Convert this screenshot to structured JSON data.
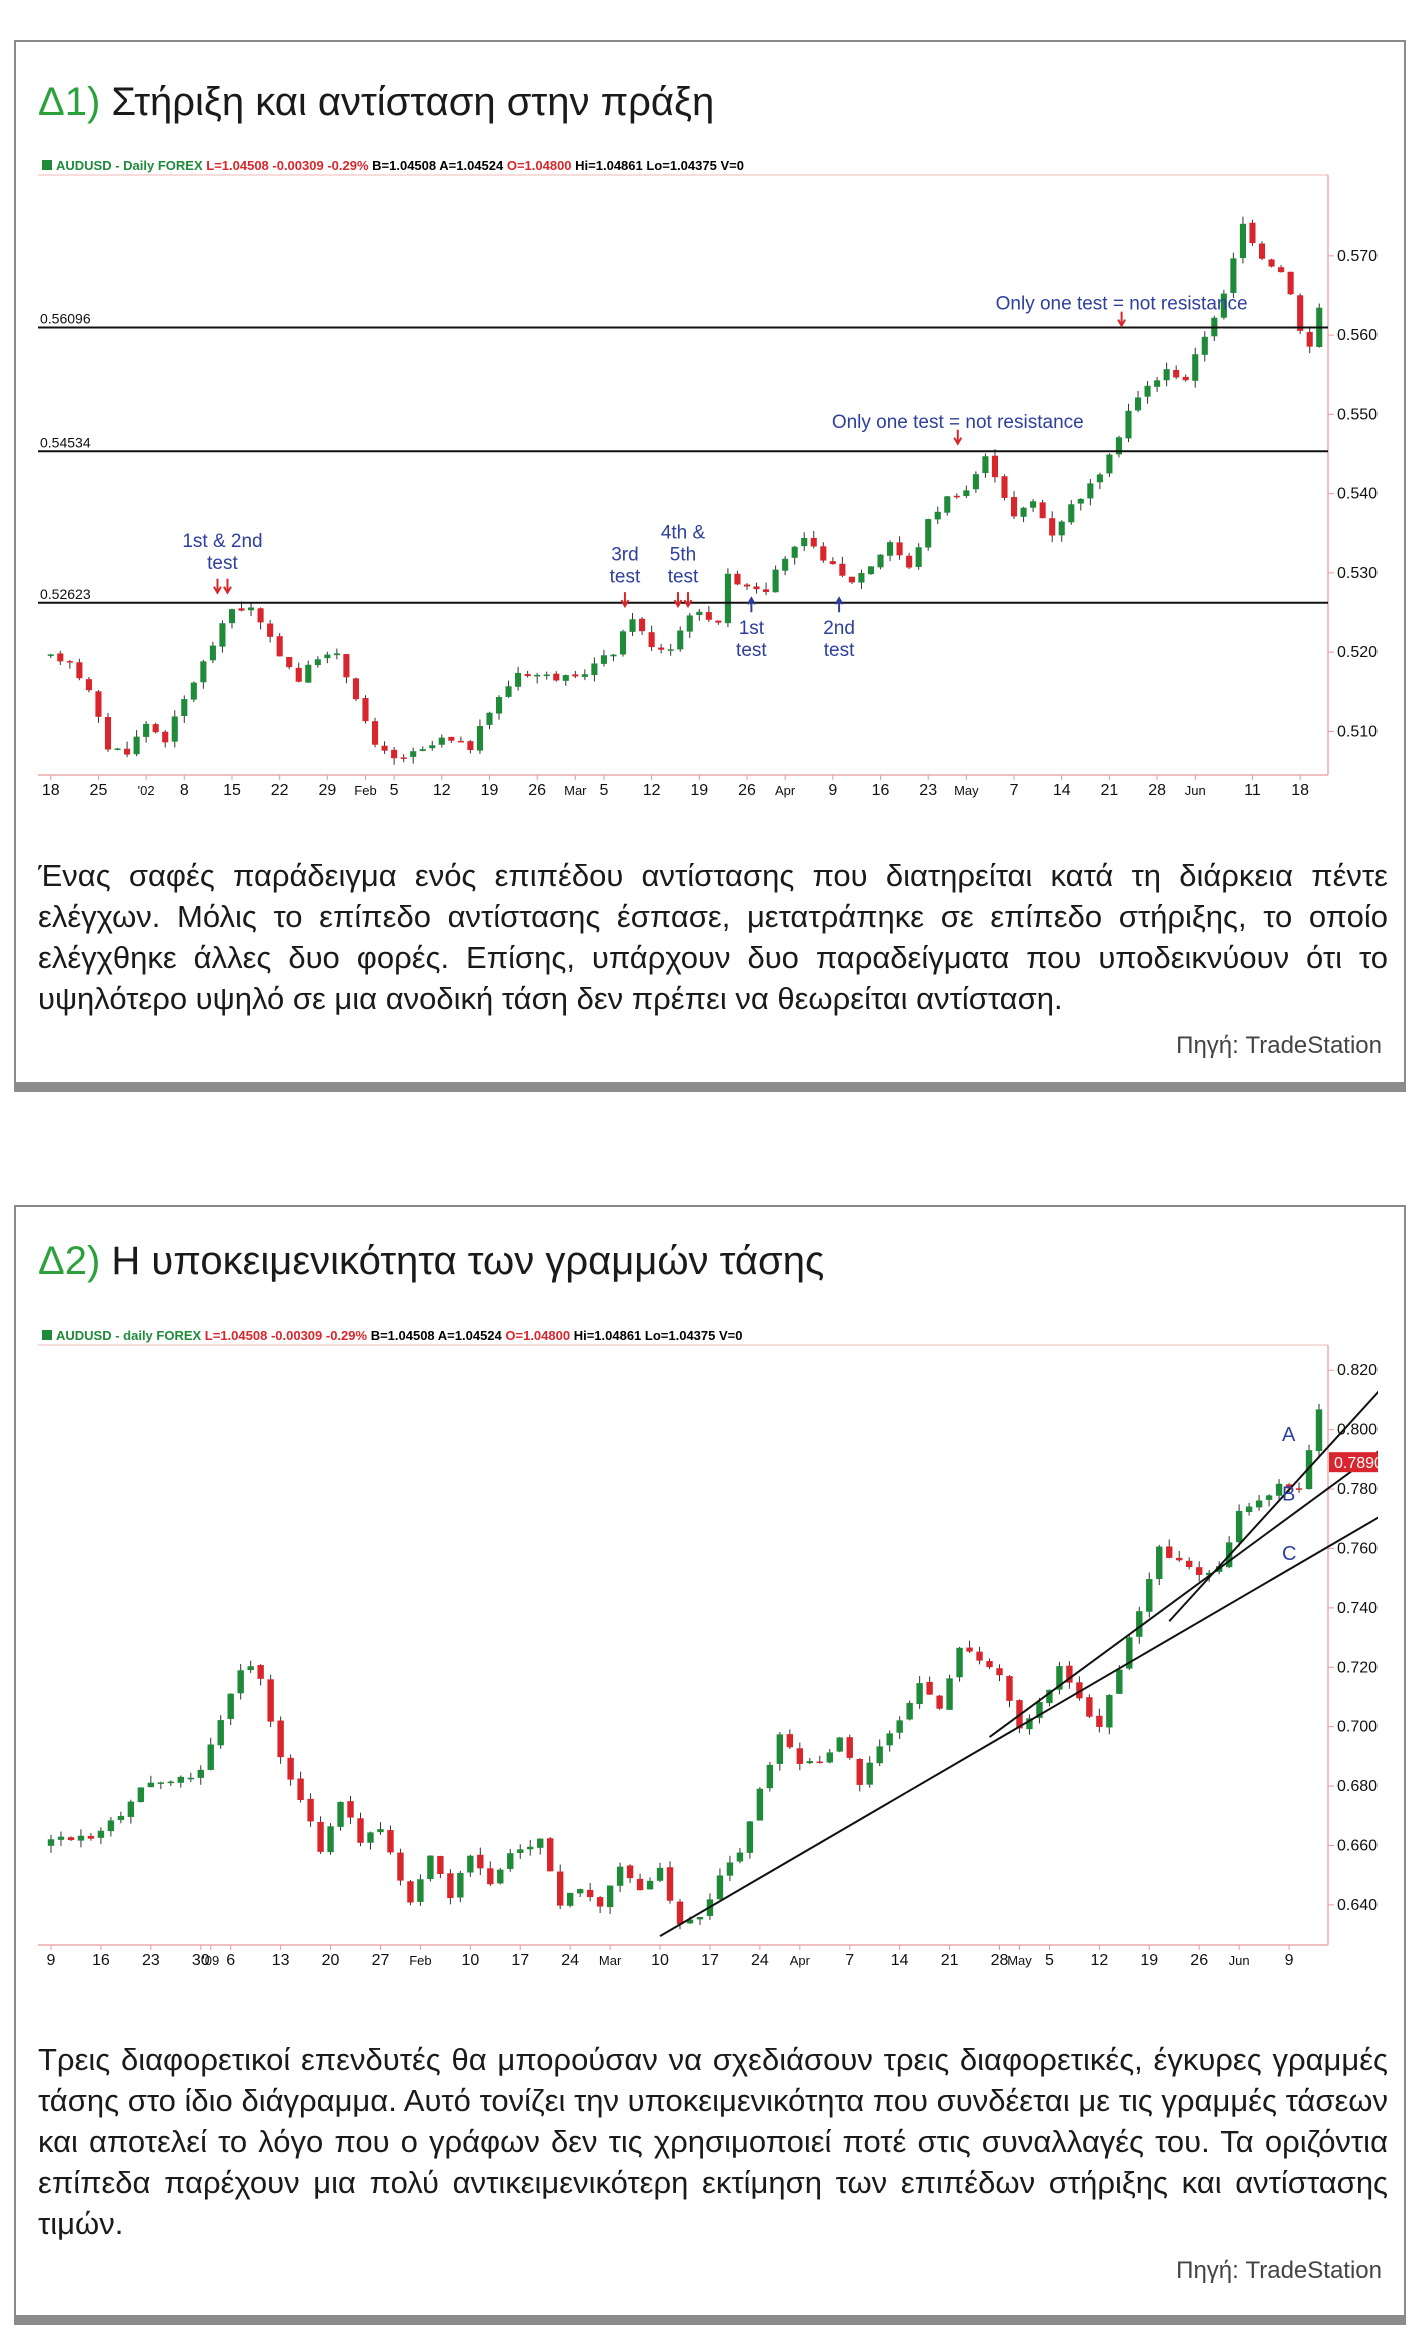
{
  "panel1": {
    "title_num": "Δ1)",
    "title_text": "Στήριξη και αντίσταση στην πράξη",
    "caption": "Ένας σαφές παράδειγμα ενός επιπέδου αντίστασης που διατηρείται κατά τη διάρκεια πέντε ελέγχων. Μόλις το επίπεδο αντίστασης έσπασε, μετατράπηκε σε επίπεδο στήριξης, το οποίο ελέγχθηκε άλλες δυο φορές. Επίσης, υπάρχουν δυο παραδείγματα που υποδεικνύουν ότι το υψηλότερο υψηλό σε μια ανοδική τάση δεν πρέπει να θεωρείται αντίσταση.",
    "source": "Πηγή: TradeStation"
  },
  "panel2": {
    "title_num": "Δ2)",
    "title_text": "Η υποκειμενικότητα των γραμμών τάσης",
    "caption": "Τρεις διαφορετικοί επενδυτές θα μπορούσαν να σχεδιάσουν τρεις διαφορετικές, έγκυρες γραμμές τάσης στο ίδιο διάγραμμα. Αυτό τονίζει την υποκειμενικότητα που συνδέεται με τις γραμμές τάσεων και αποτελεί  το λόγο που ο γράφων δεν τις χρησιμοποιεί ποτέ στις συναλλαγές του. Τα οριζόντια επίπεδα παρέχουν μια πολύ αντικειμενικότερη εκτίμηση των επιπέδων στήριξης και αντίστασης τιμών.",
    "source": "Πηγή: TradeStation"
  },
  "colors": {
    "up": "#1f8a3a",
    "down": "#d8262c",
    "annot": "#2e3f9e",
    "arrow_red": "#d8262c",
    "title_num": "#2aa13a"
  },
  "chart_data": [
    {
      "type": "candlestick",
      "header": [
        {
          "t": "AUDUSD - Daily FOREX ",
          "c": "#1f8a3a"
        },
        {
          "t": "L=1.04508 ",
          "c": "#d8262c"
        },
        {
          "t": "-0.00309 ",
          "c": "#d8262c"
        },
        {
          "t": "-0.29% ",
          "c": "#d8262c"
        },
        {
          "t": "B=1.04508 ",
          "c": "#000000"
        },
        {
          "t": "A=1.04524 ",
          "c": "#000000"
        },
        {
          "t": "O=1.04800 ",
          "c": "#d8262c"
        },
        {
          "t": "Hi=1.04861 ",
          "c": "#000000"
        },
        {
          "t": "Lo=1.04375 ",
          "c": "#000000"
        },
        {
          "t": "V=0",
          "c": "#000000"
        }
      ],
      "ylim": [
        0.5045,
        0.5802
      ],
      "yticks": [
        "0.51000",
        "0.52000",
        "0.53000",
        "0.54000",
        "0.55000",
        "0.56000",
        "0.57000"
      ],
      "ytick_values": [
        0.51,
        0.52,
        0.53,
        0.54,
        0.55,
        0.56,
        0.57
      ],
      "xticks": [
        "18",
        "25",
        "'02",
        "8",
        "15",
        "22",
        "29",
        "Feb",
        "5",
        "12",
        "19",
        "26",
        "Mar",
        "5",
        "12",
        "19",
        "26",
        "Apr",
        "9",
        "16",
        "23",
        "May",
        "7",
        "14",
        "21",
        "28",
        "Jun",
        "11",
        "18"
      ],
      "xtick_index": [
        0,
        5,
        10,
        14,
        19,
        24,
        29,
        33,
        36,
        41,
        46,
        51,
        55,
        58,
        63,
        68,
        73,
        77,
        82,
        87,
        92,
        96,
        101,
        106,
        111,
        116,
        120,
        126,
        131
      ],
      "n_bars": 134,
      "hlines": [
        {
          "value": 0.56096,
          "label": "0.56096"
        },
        {
          "value": 0.54534,
          "label": "0.54534"
        },
        {
          "value": 0.52623,
          "label": "0.52623"
        }
      ],
      "anchors": [
        {
          "i": 0,
          "v": 0.5195
        },
        {
          "i": 3,
          "v": 0.519
        },
        {
          "i": 5,
          "v": 0.515
        },
        {
          "i": 7,
          "v": 0.508
        },
        {
          "i": 9,
          "v": 0.5075
        },
        {
          "i": 11,
          "v": 0.511
        },
        {
          "i": 13,
          "v": 0.509
        },
        {
          "i": 15,
          "v": 0.514
        },
        {
          "i": 18,
          "v": 0.521
        },
        {
          "i": 20,
          "v": 0.5255
        },
        {
          "i": 22,
          "v": 0.5255
        },
        {
          "i": 24,
          "v": 0.5215
        },
        {
          "i": 27,
          "v": 0.5165
        },
        {
          "i": 29,
          "v": 0.5195
        },
        {
          "i": 31,
          "v": 0.5195
        },
        {
          "i": 33,
          "v": 0.5145
        },
        {
          "i": 35,
          "v": 0.508
        },
        {
          "i": 37,
          "v": 0.5065
        },
        {
          "i": 40,
          "v": 0.5075
        },
        {
          "i": 42,
          "v": 0.509
        },
        {
          "i": 45,
          "v": 0.508
        },
        {
          "i": 47,
          "v": 0.5125
        },
        {
          "i": 50,
          "v": 0.5175
        },
        {
          "i": 53,
          "v": 0.517
        },
        {
          "i": 56,
          "v": 0.5165
        },
        {
          "i": 58,
          "v": 0.5185
        },
        {
          "i": 60,
          "v": 0.52
        },
        {
          "i": 62,
          "v": 0.5245
        },
        {
          "i": 64,
          "v": 0.5205
        },
        {
          "i": 66,
          "v": 0.5205
        },
        {
          "i": 68,
          "v": 0.525
        },
        {
          "i": 70,
          "v": 0.5245
        },
        {
          "i": 71,
          "v": 0.524
        },
        {
          "i": 72,
          "v": 0.5295
        },
        {
          "i": 74,
          "v": 0.5285
        },
        {
          "i": 76,
          "v": 0.528
        },
        {
          "i": 78,
          "v": 0.532
        },
        {
          "i": 80,
          "v": 0.534
        },
        {
          "i": 82,
          "v": 0.532
        },
        {
          "i": 84,
          "v": 0.5295
        },
        {
          "i": 85,
          "v": 0.529
        },
        {
          "i": 87,
          "v": 0.531
        },
        {
          "i": 89,
          "v": 0.534
        },
        {
          "i": 91,
          "v": 0.5305
        },
        {
          "i": 93,
          "v": 0.5365
        },
        {
          "i": 95,
          "v": 0.5395
        },
        {
          "i": 97,
          "v": 0.5405
        },
        {
          "i": 99,
          "v": 0.5445
        },
        {
          "i": 100,
          "v": 0.5425
        },
        {
          "i": 102,
          "v": 0.537
        },
        {
          "i": 104,
          "v": 0.539
        },
        {
          "i": 106,
          "v": 0.535
        },
        {
          "i": 108,
          "v": 0.5385
        },
        {
          "i": 110,
          "v": 0.541
        },
        {
          "i": 112,
          "v": 0.5445
        },
        {
          "i": 114,
          "v": 0.5505
        },
        {
          "i": 116,
          "v": 0.5535
        },
        {
          "i": 118,
          "v": 0.5555
        },
        {
          "i": 120,
          "v": 0.5545
        },
        {
          "i": 122,
          "v": 0.56
        },
        {
          "i": 124,
          "v": 0.565
        },
        {
          "i": 126,
          "v": 0.574
        },
        {
          "i": 128,
          "v": 0.57
        },
        {
          "i": 130,
          "v": 0.568
        },
        {
          "i": 131,
          "v": 0.5655
        },
        {
          "i": 132,
          "v": 0.5605
        },
        {
          "i": 133,
          "v": 0.5585
        },
        {
          "i": 134,
          "v": 0.5635
        },
        {
          "i": 135,
          "v": 0.5705
        }
      ],
      "annotations": [
        {
          "lines": [
            "1st & 2nd",
            "test"
          ],
          "x": 0.143,
          "v": 0.5305,
          "arrows": 2,
          "dir": "down",
          "arrow_v": 0.5275
        },
        {
          "lines": [
            "3rd",
            "test"
          ],
          "x": 0.455,
          "v": 0.5288,
          "arrows": 1,
          "dir": "down",
          "arrow_v": 0.5258
        },
        {
          "lines": [
            "4th &",
            "5th",
            "test"
          ],
          "x": 0.5,
          "v": 0.5288,
          "arrows": 2,
          "dir": "down",
          "arrow_v": 0.5258
        },
        {
          "lines": [
            "1st",
            "test"
          ],
          "x": 0.553,
          "v": 0.5195,
          "arrows": 1,
          "dir": "up",
          "arrow_v": 0.5268
        },
        {
          "lines": [
            "2nd",
            "test"
          ],
          "x": 0.621,
          "v": 0.5195,
          "arrows": 1,
          "dir": "up",
          "arrow_v": 0.5268
        },
        {
          "lines": [
            "Only one test = not resistance"
          ],
          "x": 0.713,
          "v": 0.5483,
          "arrows": 1,
          "dir": "down",
          "arrow_v": 0.5463
        },
        {
          "lines": [
            "Only one test = not resistance"
          ],
          "x": 0.84,
          "v": 0.5632,
          "arrows": 1,
          "dir": "down",
          "arrow_v": 0.5612
        }
      ]
    },
    {
      "type": "candlestick",
      "header": [
        {
          "t": "AUDUSD - daily FOREX ",
          "c": "#1f8a3a"
        },
        {
          "t": "L=1.04508 ",
          "c": "#d8262c"
        },
        {
          "t": "-0.00309 ",
          "c": "#d8262c"
        },
        {
          "t": "-0.29% ",
          "c": "#d8262c"
        },
        {
          "t": "B=1.04508 ",
          "c": "#000000"
        },
        {
          "t": "A=1.04524 ",
          "c": "#000000"
        },
        {
          "t": "O=1.04800 ",
          "c": "#d8262c"
        },
        {
          "t": "Hi=1.04861 ",
          "c": "#000000"
        },
        {
          "t": "Lo=1.04375 ",
          "c": "#000000"
        },
        {
          "t": "V=0",
          "c": "#000000"
        }
      ],
      "ylim": [
        0.6265,
        0.8285
      ],
      "yticks": [
        "0.64000",
        "0.66000",
        "0.68000",
        "0.70000",
        "0.72000",
        "0.74000",
        "0.76000",
        "0.78000",
        "0.80000",
        "0.82000"
      ],
      "ytick_values": [
        0.64,
        0.66,
        0.68,
        0.7,
        0.72,
        0.74,
        0.76,
        0.78,
        0.8,
        0.82
      ],
      "last_price": "0.78905",
      "last_price_value": 0.78905,
      "xticks": [
        "9",
        "16",
        "23",
        "30",
        "'09",
        "6",
        "13",
        "20",
        "27",
        "Feb",
        "10",
        "17",
        "24",
        "Mar",
        "10",
        "17",
        "24",
        "Apr",
        "7",
        "14",
        "21",
        "28",
        "May",
        "5",
        "12",
        "19",
        "26",
        "Jun",
        "9"
      ],
      "xtick_index": [
        0,
        5,
        10,
        15,
        16,
        18,
        23,
        28,
        33,
        37,
        42,
        47,
        52,
        56,
        61,
        66,
        71,
        75,
        80,
        85,
        90,
        95,
        97,
        100,
        105,
        110,
        115,
        119,
        124
      ],
      "n_bars": 128,
      "anchors": [
        {
          "i": 0,
          "v": 0.66
        },
        {
          "i": 3,
          "v": 0.663
        },
        {
          "i": 5,
          "v": 0.6635
        },
        {
          "i": 8,
          "v": 0.671
        },
        {
          "i": 10,
          "v": 0.6795
        },
        {
          "i": 12,
          "v": 0.6815
        },
        {
          "i": 14,
          "v": 0.6825
        },
        {
          "i": 16,
          "v": 0.6855
        },
        {
          "i": 18,
          "v": 0.7015
        },
        {
          "i": 20,
          "v": 0.7195
        },
        {
          "i": 21,
          "v": 0.7205
        },
        {
          "i": 22,
          "v": 0.7155
        },
        {
          "i": 24,
          "v": 0.6895
        },
        {
          "i": 26,
          "v": 0.6765
        },
        {
          "i": 28,
          "v": 0.6575
        },
        {
          "i": 30,
          "v": 0.6755
        },
        {
          "i": 32,
          "v": 0.6615
        },
        {
          "i": 34,
          "v": 0.6655
        },
        {
          "i": 36,
          "v": 0.6475
        },
        {
          "i": 37,
          "v": 0.6415
        },
        {
          "i": 39,
          "v": 0.6565
        },
        {
          "i": 41,
          "v": 0.6435
        },
        {
          "i": 43,
          "v": 0.6565
        },
        {
          "i": 45,
          "v": 0.6475
        },
        {
          "i": 47,
          "v": 0.6565
        },
        {
          "i": 50,
          "v": 0.6625
        },
        {
          "i": 52,
          "v": 0.6405
        },
        {
          "i": 54,
          "v": 0.6455
        },
        {
          "i": 56,
          "v": 0.6405
        },
        {
          "i": 58,
          "v": 0.6535
        },
        {
          "i": 60,
          "v": 0.6445
        },
        {
          "i": 62,
          "v": 0.6515
        },
        {
          "i": 64,
          "v": 0.6325
        },
        {
          "i": 66,
          "v": 0.6355
        },
        {
          "i": 68,
          "v": 0.6505
        },
        {
          "i": 70,
          "v": 0.6575
        },
        {
          "i": 72,
          "v": 0.6785
        },
        {
          "i": 74,
          "v": 0.6975
        },
        {
          "i": 76,
          "v": 0.6875
        },
        {
          "i": 78,
          "v": 0.6885
        },
        {
          "i": 80,
          "v": 0.6955
        },
        {
          "i": 82,
          "v": 0.6815
        },
        {
          "i": 84,
          "v": 0.6935
        },
        {
          "i": 86,
          "v": 0.7015
        },
        {
          "i": 88,
          "v": 0.7145
        },
        {
          "i": 90,
          "v": 0.7055
        },
        {
          "i": 92,
          "v": 0.7265
        },
        {
          "i": 94,
          "v": 0.7225
        },
        {
          "i": 96,
          "v": 0.7175
        },
        {
          "i": 98,
          "v": 0.6995
        },
        {
          "i": 100,
          "v": 0.7075
        },
        {
          "i": 102,
          "v": 0.7195
        },
        {
          "i": 104,
          "v": 0.7085
        },
        {
          "i": 106,
          "v": 0.7005
        },
        {
          "i": 108,
          "v": 0.7195
        },
        {
          "i": 110,
          "v": 0.7395
        },
        {
          "i": 112,
          "v": 0.7595
        },
        {
          "i": 114,
          "v": 0.7565
        },
        {
          "i": 116,
          "v": 0.7505
        },
        {
          "i": 118,
          "v": 0.7545
        },
        {
          "i": 120,
          "v": 0.7715
        },
        {
          "i": 122,
          "v": 0.7755
        },
        {
          "i": 124,
          "v": 0.7815
        },
        {
          "i": 126,
          "v": 0.7795
        },
        {
          "i": 128,
          "v": 0.8065
        },
        {
          "i": 130,
          "v": 0.8185
        },
        {
          "i": 131,
          "v": 0.8125
        },
        {
          "i": 132,
          "v": 0.8005
        },
        {
          "i": 133,
          "v": 0.7935
        },
        {
          "i": 134,
          "v": 0.7905
        }
      ],
      "trendlines": [
        {
          "i1": 61,
          "v1": 0.6295,
          "i2": 134.5,
          "v2": 0.7735
        },
        {
          "i1": 94,
          "v1": 0.6965,
          "i2": 134.5,
          "v2": 0.7965
        },
        {
          "i1": 112,
          "v1": 0.7355,
          "i2": 134.5,
          "v2": 0.8185
        }
      ],
      "trendline_labels": [
        {
          "label": "A",
          "v": 0.7985
        },
        {
          "label": "B",
          "v": 0.7785
        },
        {
          "label": "C",
          "v": 0.7585
        }
      ]
    }
  ]
}
